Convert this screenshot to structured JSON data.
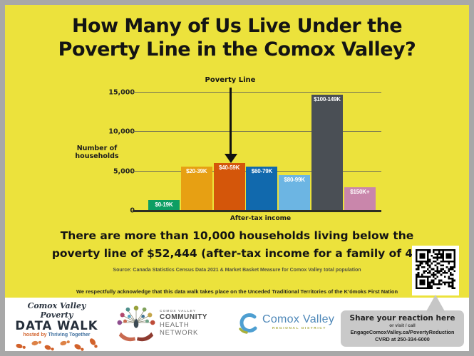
{
  "title": {
    "line1": "How Many of Us Live Under the",
    "line2": "Poverty Line in the Comox Valley?"
  },
  "chart_data": {
    "type": "bar",
    "categories": [
      "$0-19K",
      "$20-39K",
      "$40-59K",
      "$60-79K",
      "$80-99K",
      "$100-149K",
      "$150K+"
    ],
    "values": [
      1300,
      5500,
      6000,
      5500,
      4400,
      14600,
      2900
    ],
    "bar_colors": [
      "#0d9e63",
      "#e7a013",
      "#d4560a",
      "#1169ad",
      "#6cb5e3",
      "#4a4f55",
      "#c986ab"
    ],
    "title": "",
    "xlabel": "After-tax income",
    "ylabel": "Number of households",
    "yticks": [
      0,
      5000,
      10000,
      15000
    ],
    "ytick_labels": [
      "0",
      "5,000",
      "10,000",
      "15,000"
    ],
    "ylim": [
      0,
      15000
    ],
    "grid": true,
    "legend": false,
    "annotation": {
      "label": "Poverty Line",
      "target_category": "$40-59K"
    }
  },
  "statement": {
    "line1": "There are more than 10,000 households living below the",
    "line2": "poverty line of $52,444 (after-tax income for a family of 4)."
  },
  "source": "Source: Canada Statistics Census Data 2021 & Market Basket Measure for Comox Valley total population",
  "acknowledgment": "We respectfully acknowledge that this data walk takes place on the Unceded Traditional Territories of the K’ómoks First Nation",
  "footer": {
    "datawalk": {
      "script_line": "Comox Valley Poverty",
      "title": "DATA WALK",
      "hosted_by": "hosted by",
      "org": "Thriving Together"
    },
    "chn": {
      "line1": "COMOX VALLEY",
      "line2": "COMMUNITY",
      "line3": "HEALTH",
      "line4": "NETWORK"
    },
    "cvrd": {
      "name": "Comox Valley",
      "sub": "REGIONAL DISTRICT"
    },
    "bubble": {
      "title": "Share your reaction here",
      "line2": "or visit / call",
      "line3": "EngageComoxValley.ca/PovertyReduction",
      "line4": "CVRD at 250-334-6000"
    }
  },
  "colors": {
    "poster_yellow": "#ece23c",
    "frame_gray": "#a8a8a8",
    "bubble_gray": "#c9c9c9",
    "text_black": "#141414"
  }
}
